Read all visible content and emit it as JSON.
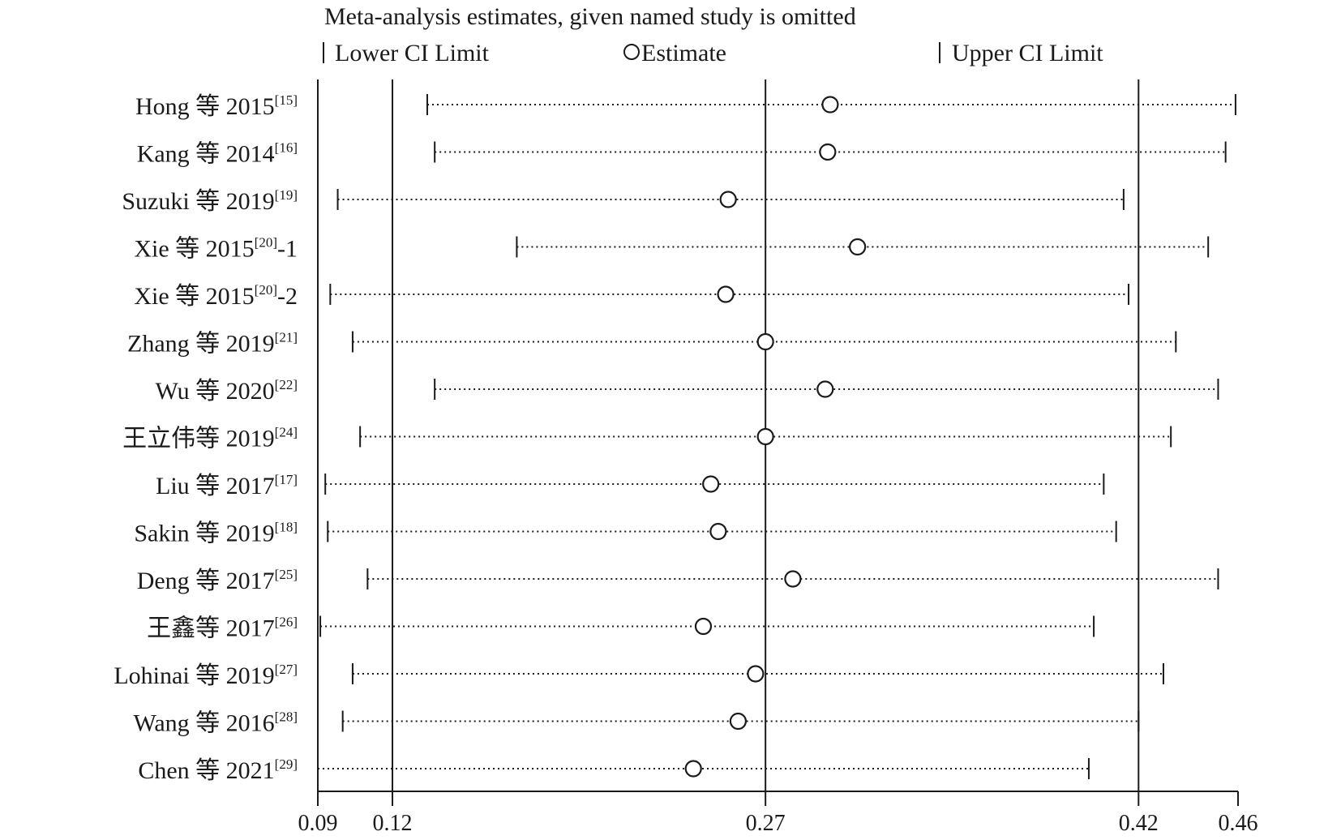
{
  "chart_data": {
    "type": "scatter",
    "title": "Meta-analysis estimates, given named study is omitted",
    "legend": {
      "lower": "Lower CI Limit",
      "estimate": "Estimate",
      "upper": "Upper CI Limit"
    },
    "xlim": [
      0.09,
      0.46
    ],
    "ticks": [
      {
        "value": 0.09,
        "label": "0.09"
      },
      {
        "value": 0.12,
        "label": "0.12"
      },
      {
        "value": 0.27,
        "label": "0.27"
      },
      {
        "value": 0.42,
        "label": "0.42"
      },
      {
        "value": 0.46,
        "label": "0.46"
      }
    ],
    "reference_lines": [
      0.12,
      0.27,
      0.42
    ],
    "studies": [
      {
        "name": "Hong 等 2015",
        "ref": "[15]",
        "suffix": "",
        "lower": 0.134,
        "estimate": 0.296,
        "upper": 0.459
      },
      {
        "name": "Kang 等 2014",
        "ref": "[16]",
        "suffix": "",
        "lower": 0.137,
        "estimate": 0.295,
        "upper": 0.455
      },
      {
        "name": "Suzuki 等 2019",
        "ref": "[19]",
        "suffix": "",
        "lower": 0.098,
        "estimate": 0.255,
        "upper": 0.414
      },
      {
        "name": "Xie 等 2015",
        "ref": "[20]",
        "suffix": "-1",
        "lower": 0.17,
        "estimate": 0.307,
        "upper": 0.448
      },
      {
        "name": "Xie 等 2015",
        "ref": "[20]",
        "suffix": "-2",
        "lower": 0.095,
        "estimate": 0.254,
        "upper": 0.416
      },
      {
        "name": "Zhang 等 2019",
        "ref": "[21]",
        "suffix": "",
        "lower": 0.104,
        "estimate": 0.27,
        "upper": 0.435
      },
      {
        "name": "Wu 等 2020",
        "ref": "[22]",
        "suffix": "",
        "lower": 0.137,
        "estimate": 0.294,
        "upper": 0.452
      },
      {
        "name": "王立伟等 2019",
        "ref": "[24]",
        "suffix": "",
        "lower": 0.107,
        "estimate": 0.27,
        "upper": 0.433
      },
      {
        "name": "Liu 等 2017",
        "ref": "[17]",
        "suffix": "",
        "lower": 0.093,
        "estimate": 0.248,
        "upper": 0.406
      },
      {
        "name": "Sakin 等 2019",
        "ref": "[18]",
        "suffix": "",
        "lower": 0.094,
        "estimate": 0.251,
        "upper": 0.411
      },
      {
        "name": "Deng 等 2017",
        "ref": "[25]",
        "suffix": "",
        "lower": 0.11,
        "estimate": 0.281,
        "upper": 0.452
      },
      {
        "name": "王鑫等 2017",
        "ref": "[26]",
        "suffix": "",
        "lower": 0.091,
        "estimate": 0.245,
        "upper": 0.402
      },
      {
        "name": "Lohinai 等 2019",
        "ref": "[27]",
        "suffix": "",
        "lower": 0.104,
        "estimate": 0.266,
        "upper": 0.43
      },
      {
        "name": "Wang 等 2016",
        "ref": "[28]",
        "suffix": "",
        "lower": 0.1,
        "estimate": 0.259,
        "upper": 0.42
      },
      {
        "name": "Chen 等 2021",
        "ref": "[29]",
        "suffix": "",
        "lower": 0.09,
        "estimate": 0.241,
        "upper": 0.4
      }
    ]
  }
}
